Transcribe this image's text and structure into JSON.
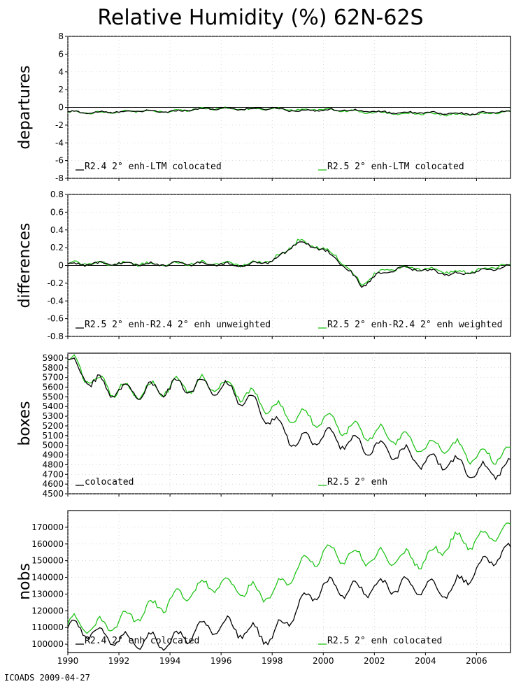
{
  "title": "Relative Humidity (%) 62N-62S",
  "footer": "ICOADS 2009-04-27",
  "colors": {
    "series_a": "#000000",
    "series_b": "#22c41a",
    "reference_line": "#000000"
  },
  "chart_data": [
    {
      "type": "line",
      "ylabel": "departures",
      "ylim": [
        -8,
        8
      ],
      "yticks": [
        8,
        6,
        4,
        2,
        0,
        -2,
        -4,
        -6,
        -8
      ],
      "yticklabels": [
        "8",
        "6",
        "4",
        "2",
        "0",
        "-2",
        "-4",
        "-6",
        "-8"
      ],
      "reference_line": 0,
      "series": [
        {
          "name": "R2.4 2° enh-LTM colocated",
          "x": [
            1990,
            1991,
            1992,
            1993,
            1994,
            1995,
            1996,
            1997,
            1998,
            1999,
            2000,
            2001,
            2002,
            2003,
            2004,
            2005,
            2006,
            2007
          ],
          "y": [
            -0.5,
            -0.6,
            -0.5,
            -0.4,
            -0.5,
            -0.2,
            -0.1,
            -0.2,
            -0.1,
            -0.4,
            -0.3,
            -0.3,
            -0.5,
            -0.6,
            -0.6,
            -0.7,
            -0.7,
            -0.5
          ]
        },
        {
          "name": "R2.5 2° enh-LTM colocated",
          "x": [
            1990,
            1991,
            1992,
            1993,
            1994,
            1995,
            1996,
            1997,
            1998,
            1999,
            2000,
            2001,
            2002,
            2003,
            2004,
            2005,
            2006,
            2007
          ],
          "y": [
            -0.5,
            -0.6,
            -0.5,
            -0.4,
            -0.5,
            -0.2,
            -0.1,
            -0.2,
            -0.1,
            -0.3,
            -0.2,
            -0.4,
            -0.6,
            -0.7,
            -0.7,
            -0.8,
            -0.8,
            -0.5
          ]
        }
      ]
    },
    {
      "type": "line",
      "ylabel": "differences",
      "ylim": [
        -0.8,
        0.8
      ],
      "yticks": [
        0.8,
        0.6,
        0.4,
        0.2,
        0,
        -0.2,
        -0.4,
        -0.6,
        -0.8
      ],
      "yticklabels": [
        "0.8",
        "0.6",
        "0.4",
        "0.2",
        "0",
        "-0.2",
        "-0.4",
        "-0.6",
        "-0.8"
      ],
      "reference_line": 0,
      "series": [
        {
          "name": "R2.5 2° enh-R2.4 2° enh unweighted",
          "x": [
            1990,
            1991,
            1992,
            1993,
            1994,
            1995,
            1996,
            1997,
            1998,
            1998.5,
            1999,
            1999.5,
            2000,
            2000.5,
            2001,
            2001.5,
            2002,
            2003,
            2004,
            2005,
            2006,
            2007
          ],
          "y": [
            0.01,
            0.02,
            0.02,
            0.01,
            0.02,
            0.02,
            0.01,
            0.0,
            0.05,
            0.15,
            0.27,
            0.22,
            0.18,
            0.08,
            -0.05,
            -0.25,
            -0.12,
            -0.03,
            -0.05,
            -0.1,
            -0.08,
            -0.02
          ]
        },
        {
          "name": "R2.5 2° enh-R2.4 2° enh weighted",
          "x": [
            1990,
            1991,
            1992,
            1993,
            1994,
            1995,
            1996,
            1997,
            1998,
            1998.5,
            1999,
            1999.5,
            2000,
            2000.5,
            2001,
            2001.5,
            2002,
            2003,
            2004,
            2005,
            2006,
            2007
          ],
          "y": [
            0.02,
            0.03,
            0.02,
            0.02,
            0.02,
            0.03,
            0.02,
            0.01,
            0.06,
            0.16,
            0.28,
            0.23,
            0.2,
            0.1,
            -0.03,
            -0.22,
            -0.1,
            -0.02,
            -0.04,
            -0.08,
            -0.06,
            0.0
          ]
        }
      ]
    },
    {
      "type": "line",
      "ylabel": "boxes",
      "ylim": [
        4500,
        5950
      ],
      "yticks": [
        5900,
        5800,
        5700,
        5600,
        5500,
        5400,
        5300,
        5200,
        5100,
        5000,
        4900,
        4800,
        4700,
        4600,
        4500
      ],
      "yticklabels": [
        "5900",
        "5800",
        "5700",
        "5600",
        "5500",
        "5400",
        "5300",
        "5200",
        "5100",
        "5000",
        "4900",
        "4800",
        "4700",
        "4600",
        "4500"
      ],
      "series": [
        {
          "name": "colocated",
          "x": [
            1990,
            1991,
            1992,
            1993,
            1994,
            1995,
            1996,
            1997,
            1998,
            1999,
            2000,
            2001,
            2002,
            2003,
            2004,
            2005,
            2006,
            2007
          ],
          "y": [
            5880,
            5650,
            5560,
            5560,
            5600,
            5620,
            5600,
            5480,
            5250,
            5020,
            5100,
            5030,
            4980,
            4930,
            4830,
            4820,
            4720,
            4760
          ]
        },
        {
          "name": "R2.5 2° enh",
          "x": [
            1990,
            1991,
            1992,
            1993,
            1994,
            1995,
            1996,
            1997,
            1998,
            1999,
            2000,
            2001,
            2002,
            2003,
            2004,
            2005,
            2006,
            2007
          ],
          "y": [
            5890,
            5660,
            5570,
            5570,
            5610,
            5630,
            5620,
            5520,
            5380,
            5300,
            5260,
            5170,
            5130,
            5080,
            4990,
            4990,
            4880,
            4910
          ]
        }
      ]
    },
    {
      "type": "line",
      "ylabel": "nobs",
      "ylim": [
        95000,
        180000
      ],
      "yticks": [
        170000,
        160000,
        150000,
        140000,
        130000,
        120000,
        110000,
        100000
      ],
      "yticklabels": [
        "170000",
        "160000",
        "150000",
        "140000",
        "130000",
        "120000",
        "110000",
        "100000"
      ],
      "x_axis": {
        "ticks": [
          1990,
          1992,
          1994,
          1996,
          1998,
          2000,
          2002,
          2004,
          2006
        ],
        "ticklabels": [
          "1990",
          "1992",
          "1994",
          "1996",
          "1998",
          "2000",
          "2002",
          "2004",
          "2006"
        ],
        "range": [
          1990,
          2007.33
        ]
      },
      "series": [
        {
          "name": "R2.4 2° enh colocated",
          "x": [
            1990,
            1991,
            1992,
            1993,
            1994,
            1995,
            1996,
            1997,
            1998,
            1999,
            2000,
            2001,
            2002,
            2003,
            2004,
            2005,
            2006,
            2007
          ],
          "y": [
            110000,
            107000,
            103000,
            102000,
            101000,
            108000,
            112000,
            108000,
            104000,
            122000,
            135000,
            132000,
            134000,
            135000,
            134000,
            132000,
            145000,
            155000
          ]
        },
        {
          "name": "R2.5 2° enh colocated",
          "x": [
            1990,
            1991,
            1992,
            1993,
            1994,
            1995,
            1996,
            1997,
            1998,
            1999,
            2000,
            2001,
            2002,
            2003,
            2004,
            2005,
            2006,
            2007
          ],
          "y": [
            113000,
            110000,
            113000,
            120000,
            126000,
            133000,
            137000,
            132000,
            130000,
            145000,
            155000,
            153000,
            152000,
            152000,
            150000,
            162000,
            162000,
            168000
          ]
        }
      ]
    }
  ]
}
